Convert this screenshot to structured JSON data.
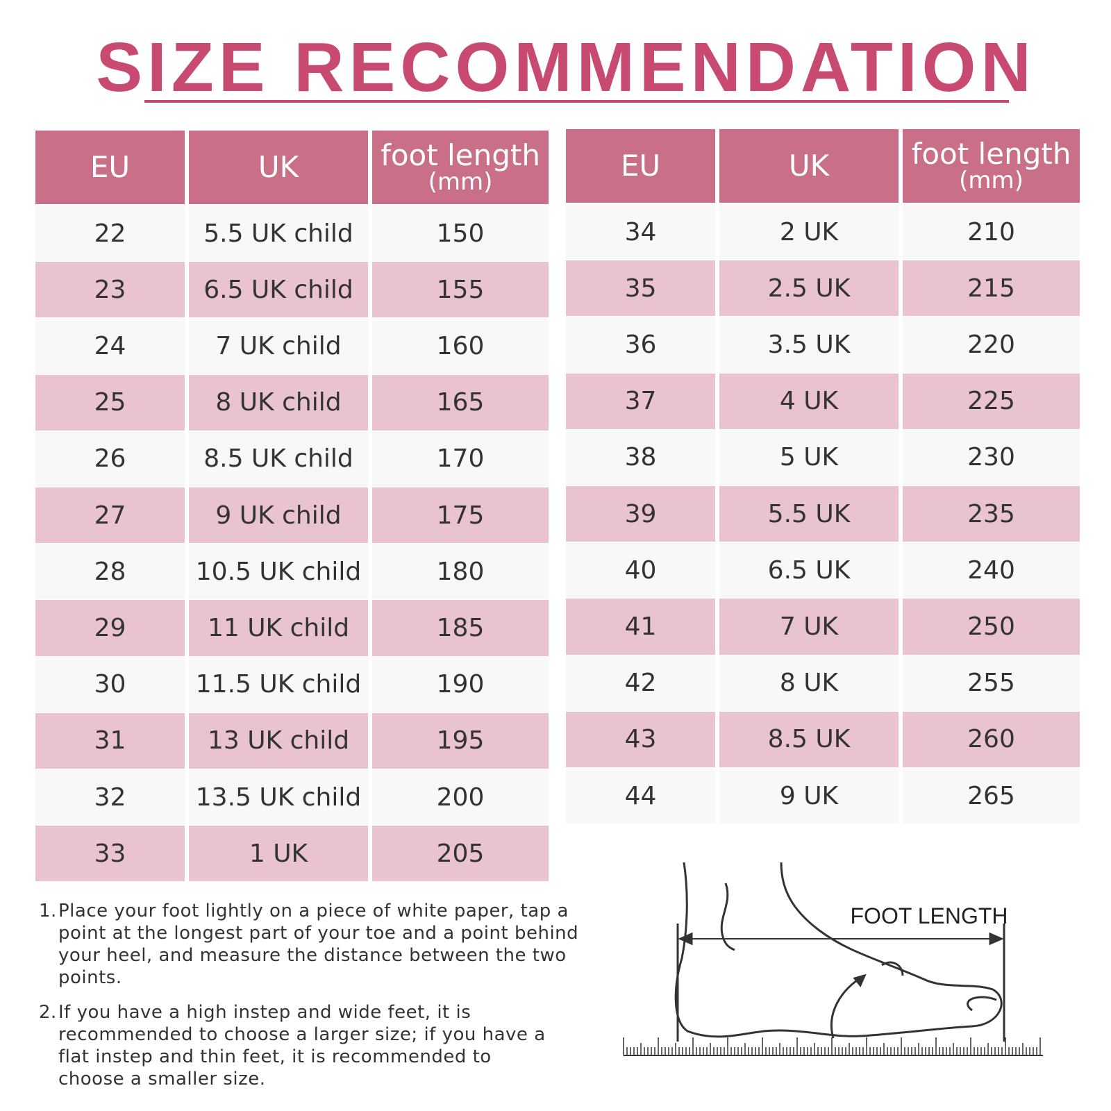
{
  "title": "SIZE RECOMMENDATION",
  "tables": [
    {
      "header": {
        "eu": "EU",
        "uk": "UK",
        "length": "foot length",
        "unit": "(mm)"
      },
      "rows": [
        [
          22,
          "5.5 UK child",
          150
        ],
        [
          23,
          "6.5 UK child",
          155
        ],
        [
          24,
          "7 UK child",
          160
        ],
        [
          25,
          "8 UK child",
          165
        ],
        [
          26,
          "8.5 UK child",
          170
        ],
        [
          27,
          "9 UK child",
          175
        ],
        [
          28,
          "10.5 UK child",
          180
        ],
        [
          29,
          "11 UK child",
          185
        ],
        [
          30,
          "11.5 UK child",
          190
        ],
        [
          31,
          "13 UK child",
          195
        ],
        [
          32,
          "13.5 UK child",
          200
        ],
        [
          33,
          "1 UK",
          205
        ]
      ]
    },
    {
      "header": {
        "eu": "EU",
        "uk": "UK",
        "length": "foot length",
        "unit": "(mm)"
      },
      "rows": [
        [
          34,
          "2 UK",
          210
        ],
        [
          35,
          "2.5 UK",
          215
        ],
        [
          36,
          "3.5 UK",
          220
        ],
        [
          37,
          "4 UK",
          225
        ],
        [
          38,
          "5 UK",
          230
        ],
        [
          39,
          "5.5 UK",
          235
        ],
        [
          40,
          "6.5 UK",
          240
        ],
        [
          41,
          "7 UK",
          250
        ],
        [
          42,
          "8 UK",
          255
        ],
        [
          43,
          "8.5 UK",
          260
        ],
        [
          44,
          "9 UK",
          265
        ]
      ]
    }
  ],
  "notes": [
    {
      "number": "1.",
      "text": "Place your foot lightly on a piece of white paper, tap a point at the longest part of your toe and a point behind your heel, and measure the distance between the two points."
    },
    {
      "number": "2.",
      "text": "If you have a high instep and wide feet, it is recommended to choose a larger size; if you have a flat instep and thin feet, it is recommended to choose a smaller size."
    }
  ],
  "diagram": {
    "label": "FOOT LENGTH"
  }
}
